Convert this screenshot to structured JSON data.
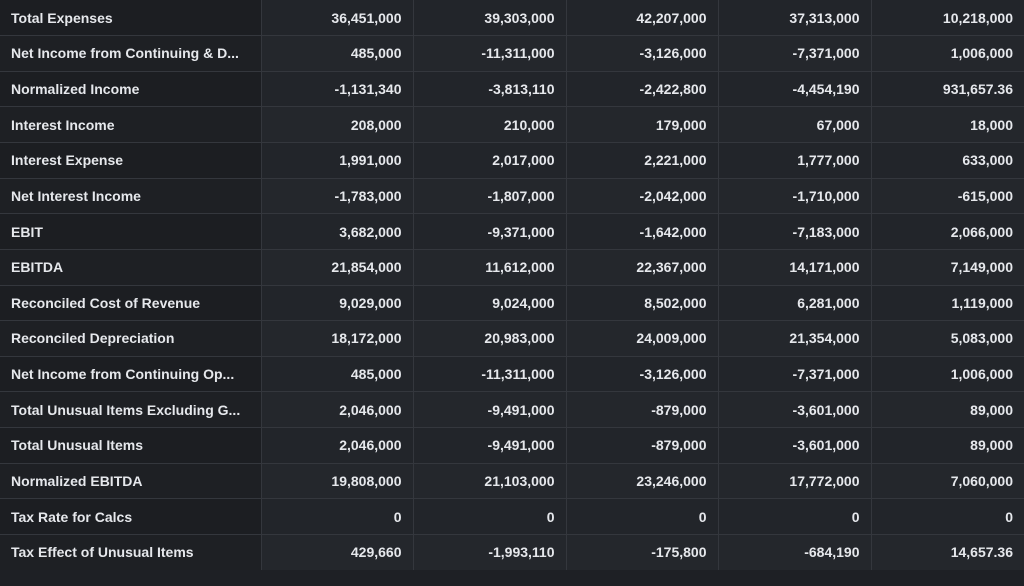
{
  "rows": [
    {
      "label": "Total Expenses",
      "values": [
        "36,451,000",
        "39,303,000",
        "42,207,000",
        "37,313,000",
        "10,218,000"
      ]
    },
    {
      "label": "Net Income from Continuing & D...",
      "values": [
        "485,000",
        "-11,311,000",
        "-3,126,000",
        "-7,371,000",
        "1,006,000"
      ]
    },
    {
      "label": "Normalized Income",
      "values": [
        "-1,131,340",
        "-3,813,110",
        "-2,422,800",
        "-4,454,190",
        "931,657.36"
      ]
    },
    {
      "label": "Interest Income",
      "values": [
        "208,000",
        "210,000",
        "179,000",
        "67,000",
        "18,000"
      ]
    },
    {
      "label": "Interest Expense",
      "values": [
        "1,991,000",
        "2,017,000",
        "2,221,000",
        "1,777,000",
        "633,000"
      ]
    },
    {
      "label": "Net Interest Income",
      "values": [
        "-1,783,000",
        "-1,807,000",
        "-2,042,000",
        "-1,710,000",
        "-615,000"
      ]
    },
    {
      "label": "EBIT",
      "values": [
        "3,682,000",
        "-9,371,000",
        "-1,642,000",
        "-7,183,000",
        "2,066,000"
      ]
    },
    {
      "label": "EBITDA",
      "values": [
        "21,854,000",
        "11,612,000",
        "22,367,000",
        "14,171,000",
        "7,149,000"
      ]
    },
    {
      "label": "Reconciled Cost of Revenue",
      "values": [
        "9,029,000",
        "9,024,000",
        "8,502,000",
        "6,281,000",
        "1,119,000"
      ]
    },
    {
      "label": "Reconciled Depreciation",
      "values": [
        "18,172,000",
        "20,983,000",
        "24,009,000",
        "21,354,000",
        "5,083,000"
      ]
    },
    {
      "label": "Net Income from Continuing Op...",
      "values": [
        "485,000",
        "-11,311,000",
        "-3,126,000",
        "-7,371,000",
        "1,006,000"
      ]
    },
    {
      "label": "Total Unusual Items Excluding G...",
      "values": [
        "2,046,000",
        "-9,491,000",
        "-879,000",
        "-3,601,000",
        "89,000"
      ]
    },
    {
      "label": "Total Unusual Items",
      "values": [
        "2,046,000",
        "-9,491,000",
        "-879,000",
        "-3,601,000",
        "89,000"
      ]
    },
    {
      "label": "Normalized EBITDA",
      "values": [
        "19,808,000",
        "21,103,000",
        "23,246,000",
        "17,772,000",
        "7,060,000"
      ]
    },
    {
      "label": "Tax Rate for Calcs",
      "values": [
        "0",
        "0",
        "0",
        "0",
        "0"
      ]
    },
    {
      "label": "Tax Effect of Unusual Items",
      "values": [
        "429,660",
        "-1,993,110",
        "-175,800",
        "-684,190",
        "14,657.36"
      ]
    }
  ]
}
